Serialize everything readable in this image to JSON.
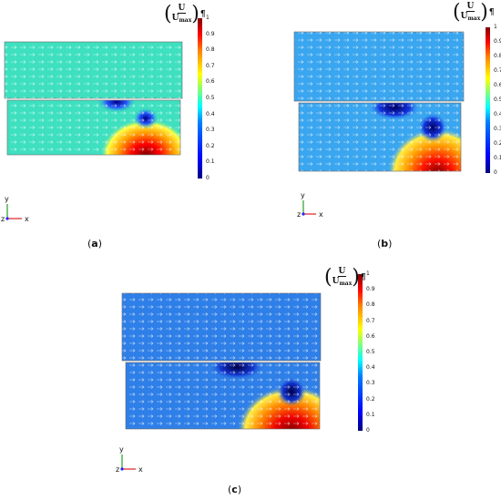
{
  "colorbar": {
    "numerator": "U",
    "denominator_base": "U",
    "denominator_sub": "max",
    "pilcrow": "¶",
    "ticks": [
      "1",
      "0.9",
      "0.8",
      "0.7",
      "0.6",
      "0.5",
      "0.4",
      "0.3",
      "0.2",
      "0.1",
      "0"
    ],
    "tick_values": [
      1,
      0.9,
      0.8,
      0.7,
      0.6,
      0.5,
      0.4,
      0.3,
      0.2,
      0.1,
      0
    ],
    "colormap": [
      "#00007f",
      "#0000ff",
      "#007fff",
      "#00ffff",
      "#7fff7f",
      "#ffff00",
      "#ff7f00",
      "#ff0000",
      "#7f0000"
    ]
  },
  "axes_triad": {
    "y_label": "y",
    "z_label": "z",
    "x_label": "x"
  },
  "panels": [
    {
      "id": "a",
      "caption_letter": "a",
      "top_fill": "#3ee0c0",
      "bottom_fill": "#3ee0c0",
      "top_fill_level": 0.42,
      "bottom_fill_level": 0.42
    },
    {
      "id": "b",
      "caption_letter": "b",
      "top_fill": "#3aa6f0",
      "bottom_fill": "#3aa6f0",
      "top_fill_level": 0.3,
      "bottom_fill_level": 0.3
    },
    {
      "id": "c",
      "caption_letter": "c",
      "top_fill": "#2f7fe8",
      "bottom_fill": "#2f7fe8",
      "top_fill_level": 0.25,
      "bottom_fill_level": 0.25
    }
  ]
}
